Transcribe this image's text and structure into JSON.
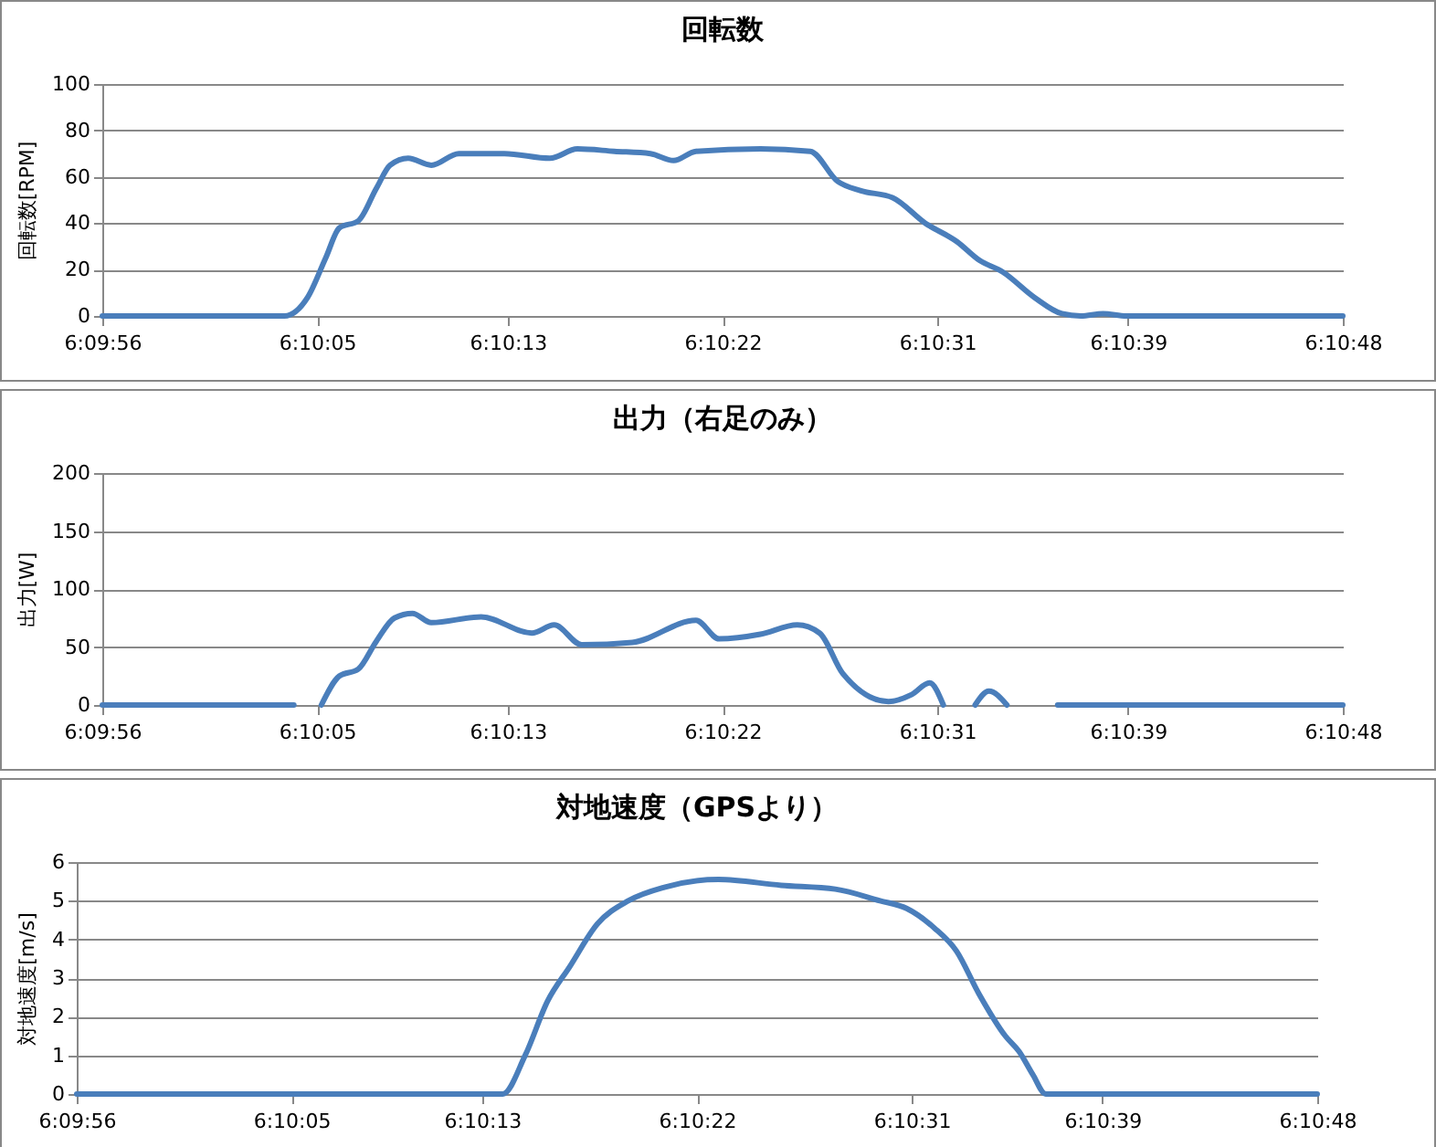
{
  "chart_data": [
    {
      "type": "line",
      "title": "回転数",
      "ylabel": "回転数[RPM]",
      "xlim": [
        6.16556,
        6.18
      ],
      "ylim": [
        0,
        100
      ],
      "yticks": [
        0,
        20,
        40,
        60,
        80,
        100
      ],
      "grid": "y",
      "xticks": [
        {
          "value": 6.16556,
          "label": "6:09:56"
        },
        {
          "value": 6.16806,
          "label": "6:10:05"
        },
        {
          "value": 6.17028,
          "label": "6:10:13"
        },
        {
          "value": 6.17278,
          "label": "6:10:22"
        },
        {
          "value": 6.17528,
          "label": "6:10:31"
        },
        {
          "value": 6.1775,
          "label": "6:10:39"
        },
        {
          "value": 6.18,
          "label": "6:10:48"
        }
      ],
      "x": [
        6.16556,
        6.16768,
        6.16795,
        6.16816,
        6.16832,
        6.16854,
        6.16875,
        6.16891,
        6.16912,
        6.16939,
        6.16971,
        6.17024,
        6.17077,
        6.17109,
        6.17152,
        6.17194,
        6.17221,
        6.17247,
        6.17322,
        6.1738,
        6.17412,
        6.17439,
        6.17476,
        6.17514,
        6.17551,
        6.17577,
        6.17604,
        6.17641,
        6.17673,
        6.17695,
        6.17721,
        6.17748,
        6.18
      ],
      "series": [
        {
          "color": "#4a7ebb",
          "values": [
            0,
            0,
            8,
            25,
            38,
            41,
            55,
            65,
            68,
            65,
            70,
            70,
            68,
            72,
            71,
            70,
            67,
            71,
            72,
            71,
            58,
            54,
            51,
            40,
            32,
            24,
            19,
            8,
            1,
            0,
            1,
            0,
            0
          ]
        }
      ]
    },
    {
      "type": "line",
      "title": "出力（右足のみ）",
      "ylabel": "出力[W]",
      "xlim": [
        6.16556,
        6.18
      ],
      "ylim": [
        0,
        200
      ],
      "yticks": [
        0,
        50,
        100,
        150,
        200
      ],
      "grid": "y",
      "xticks": [
        {
          "value": 6.16556,
          "label": "6:09:56"
        },
        {
          "value": 6.16806,
          "label": "6:10:05"
        },
        {
          "value": 6.17028,
          "label": "6:10:13"
        },
        {
          "value": 6.17278,
          "label": "6:10:22"
        },
        {
          "value": 6.17528,
          "label": "6:10:31"
        },
        {
          "value": 6.1775,
          "label": "6:10:39"
        },
        {
          "value": 6.18,
          "label": "6:10:48"
        }
      ],
      "x": [
        6.16556,
        6.16779,
        6.16795,
        6.16811,
        6.16832,
        6.16854,
        6.16875,
        6.16896,
        6.16917,
        6.16939,
        6.16997,
        6.17056,
        6.17082,
        6.17114,
        6.17173,
        6.17247,
        6.17274,
        6.17322,
        6.17365,
        6.17391,
        6.17418,
        6.17471,
        6.17498,
        6.17519,
        6.17535,
        6.17554,
        6.17572,
        6.17588,
        6.17609,
        6.17639,
        6.17668,
        6.18
      ],
      "series": [
        {
          "color": "#4a7ebb",
          "values": [
            0,
            0,
            null,
            0,
            25,
            31,
            55,
            75,
            79,
            71,
            76,
            62,
            69,
            52,
            54,
            73,
            57,
            61,
            69,
            62,
            27,
            3,
            9,
            19,
            0,
            null,
            0,
            12,
            0,
            null,
            0,
            0
          ]
        }
      ]
    },
    {
      "type": "line",
      "title": "対地速度（GPSより）",
      "ylabel": "対地速度[m/s]",
      "xlim": [
        6.16556,
        6.18
      ],
      "ylim": [
        0,
        6
      ],
      "yticks": [
        0,
        1,
        2,
        3,
        4,
        5,
        6
      ],
      "grid": "y",
      "xticks": [
        {
          "value": 6.16556,
          "label": "6:09:56"
        },
        {
          "value": 6.16806,
          "label": "6:10:05"
        },
        {
          "value": 6.17028,
          "label": "6:10:13"
        },
        {
          "value": 6.17278,
          "label": "6:10:22"
        },
        {
          "value": 6.17528,
          "label": "6:10:31"
        },
        {
          "value": 6.1775,
          "label": "6:10:39"
        },
        {
          "value": 6.18,
          "label": "6:10:48"
        }
      ],
      "x": [
        6.16556,
        6.17026,
        6.17052,
        6.17078,
        6.17104,
        6.1713,
        6.17162,
        6.17198,
        6.1724,
        6.17303,
        6.17376,
        6.17439,
        6.17491,
        6.17522,
        6.17554,
        6.1758,
        6.17606,
        6.17637,
        6.17653,
        6.17669,
        6.17684,
        6.18
      ],
      "series": [
        {
          "color": "#4a7ebb",
          "values": [
            0,
            0,
            0,
            1.0,
            2.4,
            3.3,
            4.4,
            5.0,
            5.35,
            5.55,
            5.4,
            5.3,
            5.0,
            4.8,
            4.3,
            3.7,
            2.6,
            1.5,
            1.1,
            0.5,
            0,
            0
          ]
        }
      ]
    }
  ]
}
